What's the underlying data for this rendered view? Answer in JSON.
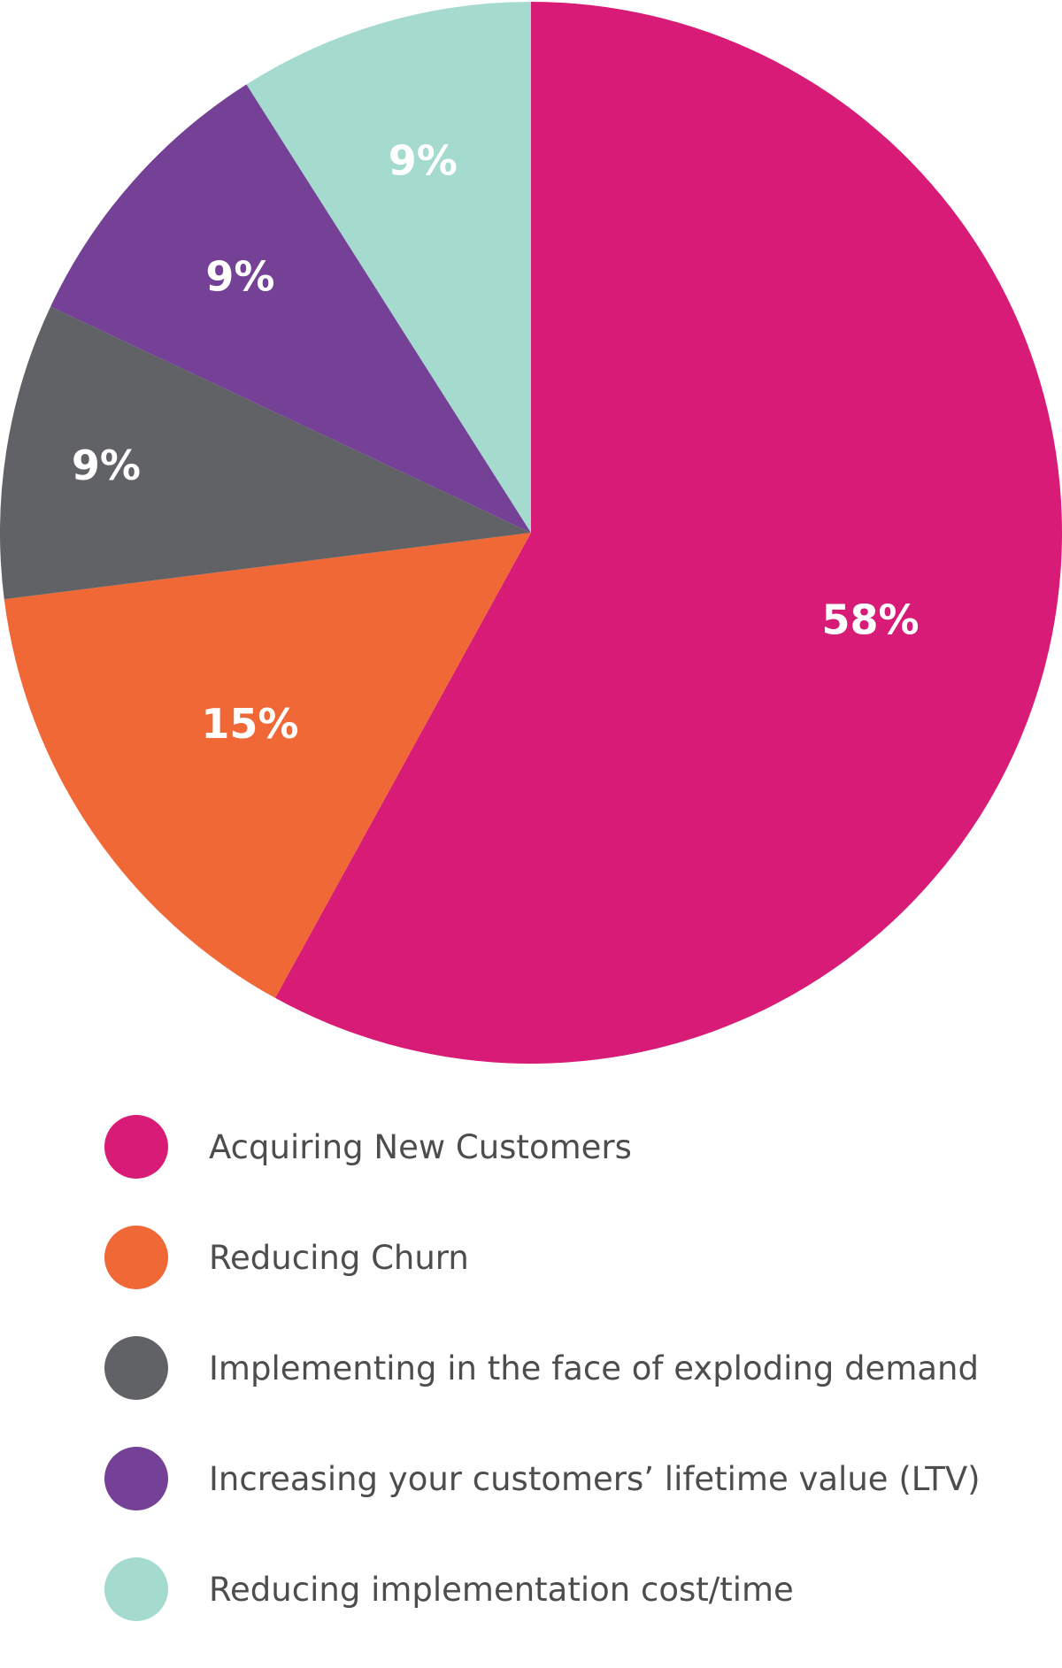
{
  "chart_data": {
    "type": "pie",
    "title": "",
    "slices": [
      {
        "label": "Acquiring New Customers",
        "value": 58,
        "display": "58%",
        "color": "#d81b76"
      },
      {
        "label": "Reducing Churn",
        "value": 15,
        "display": "15%",
        "color": "#f06836"
      },
      {
        "label": "Implementing in the face of exploding demand",
        "value": 9,
        "display": "9%",
        "color": "#616265"
      },
      {
        "label": "Increasing your customers’ lifetime value (LTV)",
        "value": 9,
        "display": "9%",
        "color": "#744196"
      },
      {
        "label": "Reducing implementation cost/time",
        "value": 9,
        "display": "9%",
        "color": "#a5dbcf"
      }
    ],
    "start_angle": "12 o'clock",
    "direction": "clockwise",
    "legend": "bottom",
    "grid": false
  }
}
